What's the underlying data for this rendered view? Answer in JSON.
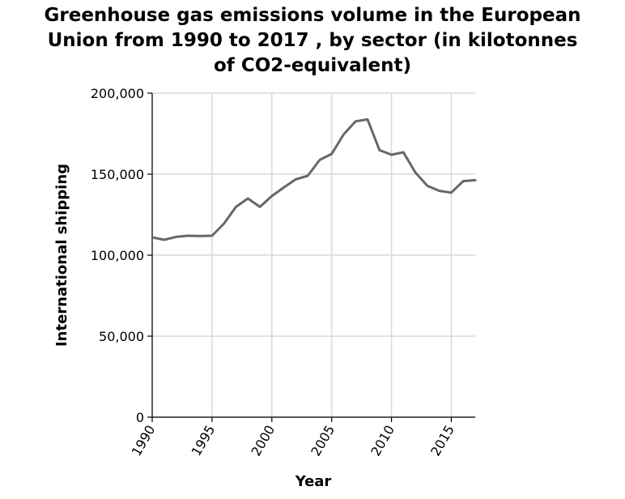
{
  "chart_data": {
    "type": "line",
    "title_lines": [
      "Greenhouse gas emissions volume in the European",
      "Union from 1990 to 2017 , by sector (in kilotonnes",
      "of CO2-equivalent)"
    ],
    "xlabel": "Year",
    "ylabel": "International shipping",
    "xlim": [
      1990,
      2017
    ],
    "ylim": [
      0,
      200000
    ],
    "x_ticks": [
      1990,
      1995,
      2000,
      2005,
      2010,
      2015
    ],
    "y_ticks": [
      0,
      50000,
      100000,
      150000,
      200000
    ],
    "y_tick_labels": [
      "0",
      "50,000",
      "100,000",
      "150,000",
      "200,000"
    ],
    "grid": true,
    "line_color": "#6f6464",
    "series": [
      {
        "x": [
          1990,
          1991,
          1992,
          1993,
          1994,
          1995,
          1996,
          1997,
          1998,
          1999,
          2000,
          2001,
          2002,
          2003,
          2004,
          2005,
          2006,
          2007,
          2008,
          2009,
          2010,
          2011,
          2012,
          2013,
          2014,
          2015,
          2016,
          2017
        ],
        "y": [
          111000,
          109500,
          111300,
          112000,
          111800,
          112000,
          119500,
          129800,
          135000,
          129800,
          136500,
          141800,
          146800,
          149000,
          158800,
          162500,
          174500,
          182600,
          183800,
          164800,
          162000,
          163500,
          151000,
          142800,
          139700,
          138600,
          145700,
          146300
        ]
      }
    ]
  }
}
